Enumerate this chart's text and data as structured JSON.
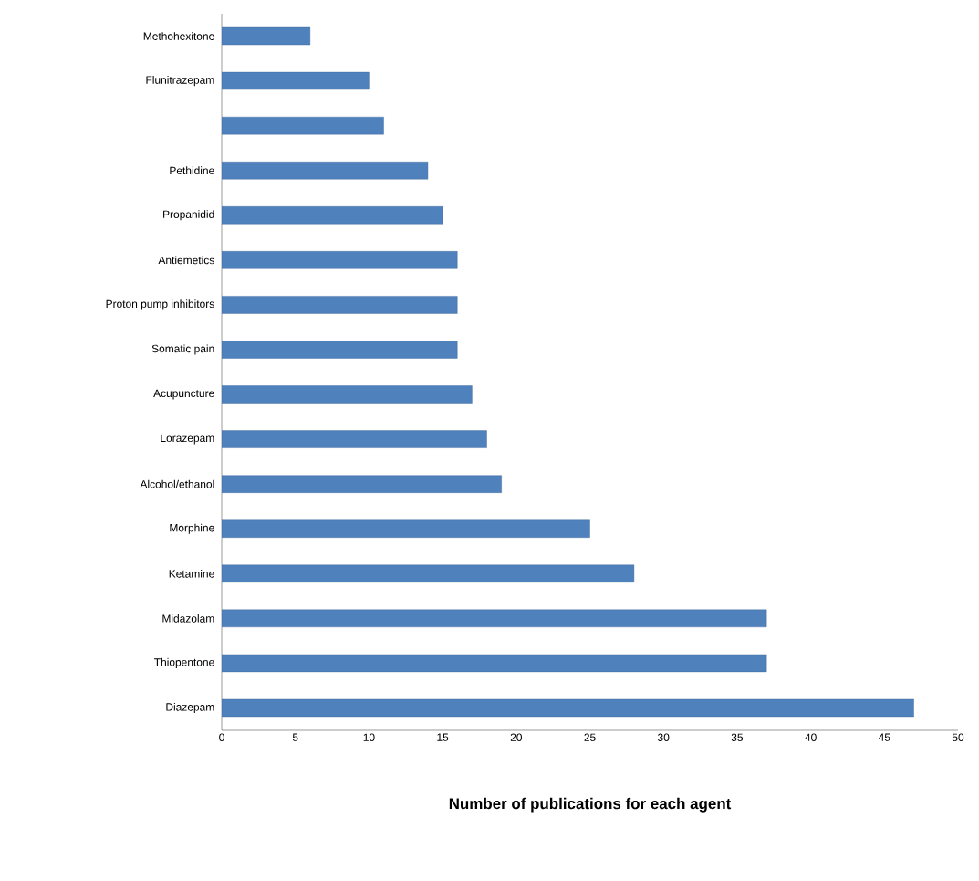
{
  "chart_data": {
    "type": "bar",
    "orientation": "horizontal",
    "xlabel": "Number of publications for each agent",
    "categories": [
      "Methohexitone",
      "Flunitrazepam",
      null,
      "Pethidine",
      "Propanidid",
      "Antiemetics",
      "Proton pump inhibitors",
      "Somatic pain",
      "Acupuncture",
      "Lorazepam",
      "Alcohol/ethanol",
      "Morphine",
      "Ketamine",
      "Midazolam",
      "Thiopentone",
      "Diazepam"
    ],
    "values": [
      6,
      10,
      11,
      14,
      15,
      16,
      16,
      16,
      17,
      18,
      19,
      25,
      28,
      37,
      37,
      47
    ],
    "color": "#4f81bd",
    "xlim": [
      0,
      50
    ],
    "xticks": [
      0,
      5,
      10,
      15,
      20,
      25,
      30,
      35,
      40,
      45,
      50
    ]
  }
}
